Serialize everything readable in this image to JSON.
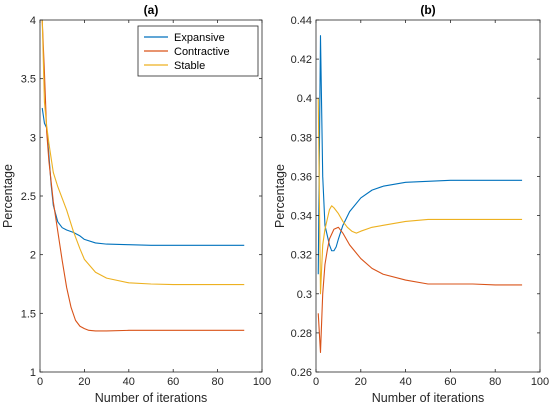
{
  "chart_data": [
    {
      "type": "line",
      "title": "(a)",
      "xlabel": "Number of iterations",
      "ylabel": "Percentage",
      "xlim": [
        0,
        100
      ],
      "ylim": [
        1,
        4
      ],
      "xticks": [
        0,
        20,
        40,
        60,
        80,
        100
      ],
      "xtick_labels": [
        "0",
        "20",
        "40",
        "60",
        "80",
        "100"
      ],
      "yticks": [
        1,
        1.5,
        2,
        2.5,
        3,
        3.5,
        4
      ],
      "ytick_labels": [
        "1",
        "1.5",
        "2",
        "2.5",
        "3",
        "3.5",
        "4"
      ],
      "grid": false,
      "legend_position": "top-right",
      "series": [
        {
          "name": "Expansive",
          "color": "#0072BD",
          "x": [
            1,
            2,
            3,
            4,
            5,
            6,
            8,
            10,
            12,
            15,
            18,
            20,
            25,
            30,
            40,
            50,
            60,
            70,
            80,
            92
          ],
          "y": [
            3.25,
            3.12,
            3.08,
            2.85,
            2.6,
            2.42,
            2.28,
            2.23,
            2.21,
            2.19,
            2.16,
            2.13,
            2.1,
            2.09,
            2.085,
            2.08,
            2.08,
            2.08,
            2.08,
            2.08
          ]
        },
        {
          "name": "Contractive",
          "color": "#D95319",
          "x": [
            1,
            2,
            3,
            4,
            6,
            8,
            10,
            12,
            14,
            16,
            18,
            20,
            22,
            25,
            30,
            40,
            60,
            92
          ],
          "y": [
            4.0,
            3.55,
            3.05,
            2.8,
            2.45,
            2.2,
            1.95,
            1.72,
            1.55,
            1.44,
            1.39,
            1.37,
            1.355,
            1.35,
            1.35,
            1.355,
            1.355,
            1.355
          ]
        },
        {
          "name": "Stable",
          "color": "#EDB120",
          "x": [
            1,
            2,
            3,
            4,
            6,
            8,
            10,
            12,
            15,
            18,
            20,
            25,
            30,
            40,
            50,
            60,
            70,
            80,
            92
          ],
          "y": [
            4.0,
            3.3,
            3.1,
            2.95,
            2.7,
            2.58,
            2.48,
            2.38,
            2.2,
            2.05,
            1.96,
            1.85,
            1.8,
            1.76,
            1.75,
            1.745,
            1.745,
            1.745,
            1.745
          ]
        }
      ]
    },
    {
      "type": "line",
      "title": "(b)",
      "xlabel": "Number of iterations",
      "ylabel": "Percentage",
      "xlim": [
        0,
        100
      ],
      "ylim": [
        0.26,
        0.44
      ],
      "xticks": [
        0,
        20,
        40,
        60,
        80,
        100
      ],
      "xtick_labels": [
        "0",
        "20",
        "40",
        "60",
        "80",
        "100"
      ],
      "yticks": [
        0.26,
        0.28,
        0.3,
        0.32,
        0.34,
        0.36,
        0.38,
        0.4,
        0.42,
        0.44
      ],
      "ytick_labels": [
        "0.26",
        "0.28",
        "0.3",
        "0.32",
        "0.34",
        "0.36",
        "0.38",
        "0.4",
        "0.42",
        "0.44"
      ],
      "grid": false,
      "series": [
        {
          "name": "Expansive",
          "color": "#0072BD",
          "x": [
            1,
            2,
            3,
            4,
            5,
            6,
            7,
            8,
            9,
            10,
            12,
            15,
            20,
            25,
            30,
            40,
            50,
            60,
            70,
            80,
            92
          ],
          "y": [
            0.31,
            0.432,
            0.36,
            0.335,
            0.33,
            0.325,
            0.322,
            0.322,
            0.324,
            0.328,
            0.335,
            0.342,
            0.349,
            0.353,
            0.355,
            0.357,
            0.3575,
            0.358,
            0.358,
            0.358,
            0.358
          ]
        },
        {
          "name": "Contractive",
          "color": "#D95319",
          "x": [
            1,
            2,
            3,
            4,
            5,
            6,
            8,
            10,
            12,
            15,
            20,
            25,
            30,
            40,
            50,
            60,
            70,
            80,
            92
          ],
          "y": [
            0.29,
            0.27,
            0.3,
            0.315,
            0.322,
            0.328,
            0.333,
            0.334,
            0.331,
            0.325,
            0.318,
            0.313,
            0.31,
            0.307,
            0.305,
            0.305,
            0.305,
            0.3045,
            0.3045
          ]
        },
        {
          "name": "Stable",
          "color": "#EDB120",
          "x": [
            1,
            2,
            3,
            4,
            5,
            6,
            7,
            8,
            10,
            12,
            14,
            16,
            18,
            20,
            25,
            30,
            40,
            50,
            60,
            70,
            80,
            92
          ],
          "y": [
            0.4,
            0.3,
            0.325,
            0.333,
            0.338,
            0.343,
            0.345,
            0.344,
            0.341,
            0.337,
            0.334,
            0.332,
            0.331,
            0.332,
            0.334,
            0.335,
            0.337,
            0.338,
            0.338,
            0.338,
            0.338,
            0.338
          ]
        }
      ]
    }
  ]
}
